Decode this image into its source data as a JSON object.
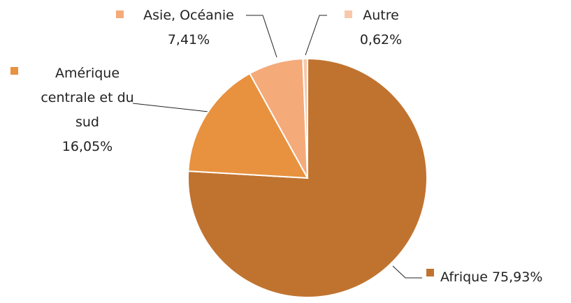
{
  "chart_data": {
    "type": "pie",
    "categories": [
      "Afrique",
      "Amérique centrale et du sud",
      "Asie, Océanie",
      "Autre"
    ],
    "values": [
      75.93,
      16.05,
      7.41,
      0.62
    ],
    "value_labels": [
      "75,93%",
      "16,05%",
      "7,41%",
      "0,62%"
    ],
    "colors": [
      "#c0732f",
      "#e8913f",
      "#f5aa7a",
      "#f8c8aa"
    ]
  }
}
